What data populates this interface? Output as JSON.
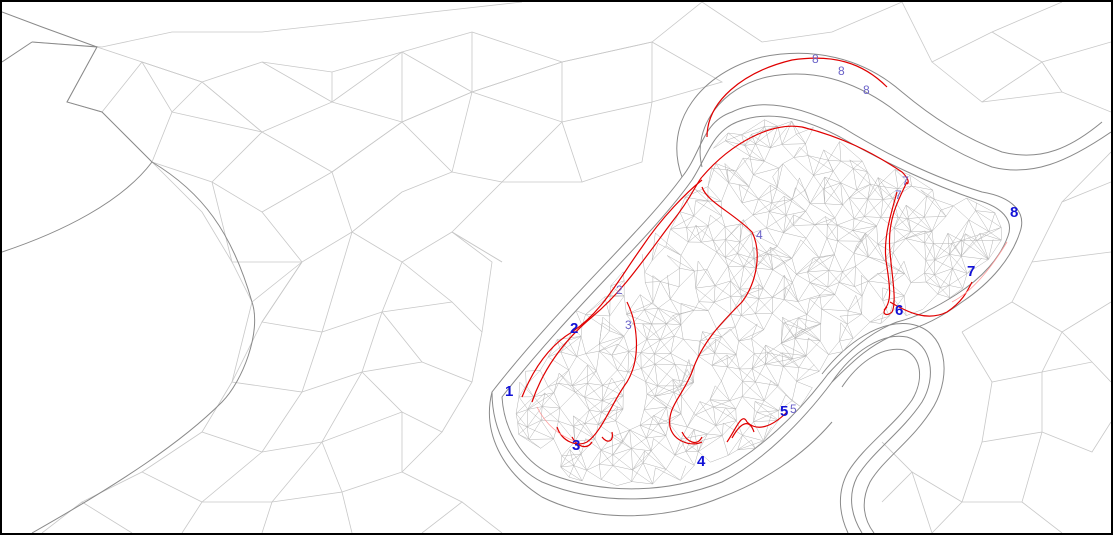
{
  "figure": {
    "colors": {
      "background": "#ffffff",
      "mesh_line": "#c8c8c8",
      "mesh_dense": "#b4b4b4",
      "boundary": "#8a8a8a",
      "flood_front": "#e00000",
      "label_bold": "#1212d6",
      "label_thin": "#6a62c8"
    },
    "labels_bold": [
      "1",
      "2",
      "3",
      "4",
      "5",
      "6",
      "7",
      "8"
    ],
    "labels_thin": [
      "2",
      "3",
      "4",
      "5",
      "7",
      "7",
      "8",
      "8",
      "8"
    ]
  }
}
